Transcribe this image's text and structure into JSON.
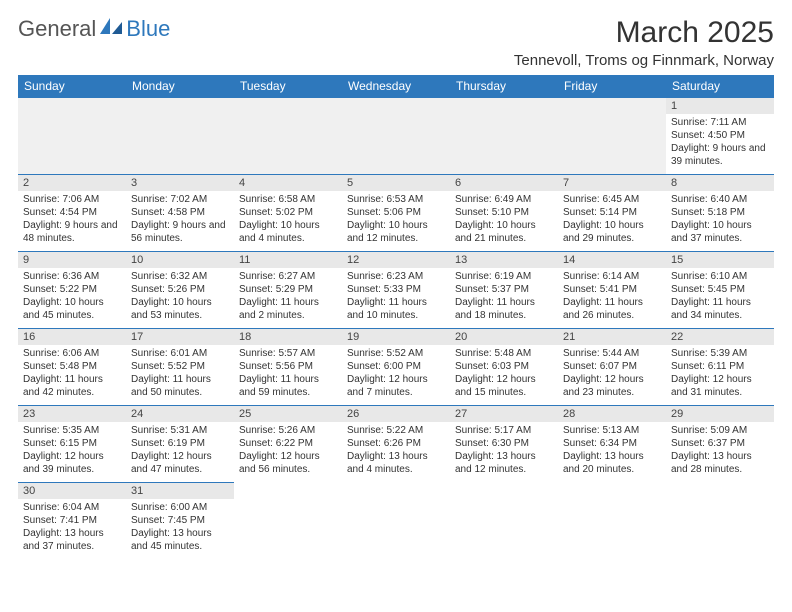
{
  "brand": {
    "word1": "General",
    "word2": "Blue"
  },
  "title": "March 2025",
  "location": "Tennevoll, Troms og Finnmark, Norway",
  "colors": {
    "header_bg": "#2e78bc",
    "header_text": "#ffffff",
    "daynum_bg": "#e8e8e8",
    "cell_border": "#2e78bc",
    "empty_bg": "#f0f0f0",
    "page_bg": "#ffffff",
    "body_text": "#333333"
  },
  "weekdays": [
    "Sunday",
    "Monday",
    "Tuesday",
    "Wednesday",
    "Thursday",
    "Friday",
    "Saturday"
  ],
  "grid": [
    [
      {
        "blank": true
      },
      {
        "blank": true
      },
      {
        "blank": true
      },
      {
        "blank": true
      },
      {
        "blank": true
      },
      {
        "blank": true
      },
      {
        "n": "1",
        "sunrise": "Sunrise: 7:11 AM",
        "sunset": "Sunset: 4:50 PM",
        "day": "Daylight: 9 hours and 39 minutes."
      }
    ],
    [
      {
        "n": "2",
        "sunrise": "Sunrise: 7:06 AM",
        "sunset": "Sunset: 4:54 PM",
        "day": "Daylight: 9 hours and 48 minutes."
      },
      {
        "n": "3",
        "sunrise": "Sunrise: 7:02 AM",
        "sunset": "Sunset: 4:58 PM",
        "day": "Daylight: 9 hours and 56 minutes."
      },
      {
        "n": "4",
        "sunrise": "Sunrise: 6:58 AM",
        "sunset": "Sunset: 5:02 PM",
        "day": "Daylight: 10 hours and 4 minutes."
      },
      {
        "n": "5",
        "sunrise": "Sunrise: 6:53 AM",
        "sunset": "Sunset: 5:06 PM",
        "day": "Daylight: 10 hours and 12 minutes."
      },
      {
        "n": "6",
        "sunrise": "Sunrise: 6:49 AM",
        "sunset": "Sunset: 5:10 PM",
        "day": "Daylight: 10 hours and 21 minutes."
      },
      {
        "n": "7",
        "sunrise": "Sunrise: 6:45 AM",
        "sunset": "Sunset: 5:14 PM",
        "day": "Daylight: 10 hours and 29 minutes."
      },
      {
        "n": "8",
        "sunrise": "Sunrise: 6:40 AM",
        "sunset": "Sunset: 5:18 PM",
        "day": "Daylight: 10 hours and 37 minutes."
      }
    ],
    [
      {
        "n": "9",
        "sunrise": "Sunrise: 6:36 AM",
        "sunset": "Sunset: 5:22 PM",
        "day": "Daylight: 10 hours and 45 minutes."
      },
      {
        "n": "10",
        "sunrise": "Sunrise: 6:32 AM",
        "sunset": "Sunset: 5:26 PM",
        "day": "Daylight: 10 hours and 53 minutes."
      },
      {
        "n": "11",
        "sunrise": "Sunrise: 6:27 AM",
        "sunset": "Sunset: 5:29 PM",
        "day": "Daylight: 11 hours and 2 minutes."
      },
      {
        "n": "12",
        "sunrise": "Sunrise: 6:23 AM",
        "sunset": "Sunset: 5:33 PM",
        "day": "Daylight: 11 hours and 10 minutes."
      },
      {
        "n": "13",
        "sunrise": "Sunrise: 6:19 AM",
        "sunset": "Sunset: 5:37 PM",
        "day": "Daylight: 11 hours and 18 minutes."
      },
      {
        "n": "14",
        "sunrise": "Sunrise: 6:14 AM",
        "sunset": "Sunset: 5:41 PM",
        "day": "Daylight: 11 hours and 26 minutes."
      },
      {
        "n": "15",
        "sunrise": "Sunrise: 6:10 AM",
        "sunset": "Sunset: 5:45 PM",
        "day": "Daylight: 11 hours and 34 minutes."
      }
    ],
    [
      {
        "n": "16",
        "sunrise": "Sunrise: 6:06 AM",
        "sunset": "Sunset: 5:48 PM",
        "day": "Daylight: 11 hours and 42 minutes."
      },
      {
        "n": "17",
        "sunrise": "Sunrise: 6:01 AM",
        "sunset": "Sunset: 5:52 PM",
        "day": "Daylight: 11 hours and 50 minutes."
      },
      {
        "n": "18",
        "sunrise": "Sunrise: 5:57 AM",
        "sunset": "Sunset: 5:56 PM",
        "day": "Daylight: 11 hours and 59 minutes."
      },
      {
        "n": "19",
        "sunrise": "Sunrise: 5:52 AM",
        "sunset": "Sunset: 6:00 PM",
        "day": "Daylight: 12 hours and 7 minutes."
      },
      {
        "n": "20",
        "sunrise": "Sunrise: 5:48 AM",
        "sunset": "Sunset: 6:03 PM",
        "day": "Daylight: 12 hours and 15 minutes."
      },
      {
        "n": "21",
        "sunrise": "Sunrise: 5:44 AM",
        "sunset": "Sunset: 6:07 PM",
        "day": "Daylight: 12 hours and 23 minutes."
      },
      {
        "n": "22",
        "sunrise": "Sunrise: 5:39 AM",
        "sunset": "Sunset: 6:11 PM",
        "day": "Daylight: 12 hours and 31 minutes."
      }
    ],
    [
      {
        "n": "23",
        "sunrise": "Sunrise: 5:35 AM",
        "sunset": "Sunset: 6:15 PM",
        "day": "Daylight: 12 hours and 39 minutes."
      },
      {
        "n": "24",
        "sunrise": "Sunrise: 5:31 AM",
        "sunset": "Sunset: 6:19 PM",
        "day": "Daylight: 12 hours and 47 minutes."
      },
      {
        "n": "25",
        "sunrise": "Sunrise: 5:26 AM",
        "sunset": "Sunset: 6:22 PM",
        "day": "Daylight: 12 hours and 56 minutes."
      },
      {
        "n": "26",
        "sunrise": "Sunrise: 5:22 AM",
        "sunset": "Sunset: 6:26 PM",
        "day": "Daylight: 13 hours and 4 minutes."
      },
      {
        "n": "27",
        "sunrise": "Sunrise: 5:17 AM",
        "sunset": "Sunset: 6:30 PM",
        "day": "Daylight: 13 hours and 12 minutes."
      },
      {
        "n": "28",
        "sunrise": "Sunrise: 5:13 AM",
        "sunset": "Sunset: 6:34 PM",
        "day": "Daylight: 13 hours and 20 minutes."
      },
      {
        "n": "29",
        "sunrise": "Sunrise: 5:09 AM",
        "sunset": "Sunset: 6:37 PM",
        "day": "Daylight: 13 hours and 28 minutes."
      }
    ],
    [
      {
        "n": "30",
        "sunrise": "Sunrise: 6:04 AM",
        "sunset": "Sunset: 7:41 PM",
        "day": "Daylight: 13 hours and 37 minutes."
      },
      {
        "n": "31",
        "sunrise": "Sunrise: 6:00 AM",
        "sunset": "Sunset: 7:45 PM",
        "day": "Daylight: 13 hours and 45 minutes."
      },
      {
        "blank": true
      },
      {
        "blank": true
      },
      {
        "blank": true
      },
      {
        "blank": true
      },
      {
        "blank": true
      }
    ]
  ]
}
